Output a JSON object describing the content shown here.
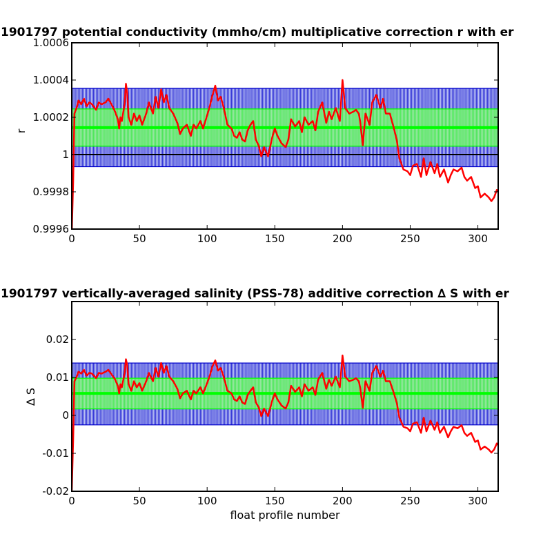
{
  "colors": {
    "background": "#ffffff",
    "axes": "#000000",
    "data_line": "#ff0000",
    "inner_band": "#00ff00",
    "inner_band_fill": "#90ee90",
    "outer_band": "#0000cc",
    "reference_line": "#000000"
  },
  "chart_data": [
    {
      "type": "line",
      "title": "1901797 potential conductivity (mmho/cm) multiplicative correction r with er",
      "xlabel": "",
      "ylabel": "r",
      "xlim": [
        0,
        315
      ],
      "ylim": [
        0.9996,
        1.0006
      ],
      "grid": false,
      "x_ticks": [
        0,
        50,
        100,
        150,
        200,
        250,
        300
      ],
      "x_tick_labels": [
        "0",
        "50",
        "100",
        "150",
        "200",
        "250",
        "300"
      ],
      "y_ticks": [
        0.9996,
        0.9998,
        1,
        1.0002,
        1.0004,
        1.0006
      ],
      "y_tick_labels": [
        "0.9996",
        "0.9998",
        "1",
        "1.0002",
        "1.0004",
        "1.0006"
      ],
      "reference_line": 1.0,
      "mean_correction": 1.000145,
      "inner_band": [
        1.000045,
        1.000245
      ],
      "outer_band": [
        0.999935,
        1.000355
      ],
      "series": [
        {
          "x": [
            0,
            1,
            2,
            4,
            5,
            7,
            9,
            11,
            13,
            15,
            18,
            20,
            22,
            25,
            27,
            30,
            32,
            34,
            35,
            36,
            37,
            39,
            40,
            41,
            42,
            44,
            46,
            48,
            50,
            52,
            55,
            57,
            60,
            62,
            64,
            66,
            68,
            70,
            72,
            75,
            78,
            80,
            82,
            85,
            88,
            90,
            92,
            95,
            97,
            100,
            102,
            104,
            106,
            108,
            110,
            112,
            115,
            118,
            120,
            122,
            124,
            126,
            128,
            130,
            132,
            134,
            136,
            138,
            140,
            142,
            145,
            148,
            150,
            152,
            155,
            158,
            160,
            162,
            165,
            168,
            170,
            172,
            175,
            178,
            180,
            182,
            185,
            188,
            190,
            192,
            195,
            198,
            200,
            202,
            205,
            208,
            210,
            212,
            213,
            215,
            217,
            220,
            222,
            225,
            228,
            230,
            232,
            235,
            238,
            240,
            242,
            245,
            248,
            250,
            252,
            255,
            258,
            260,
            262,
            265,
            268,
            270,
            272,
            275,
            278,
            280,
            282,
            285,
            288,
            290,
            292,
            295,
            298,
            300,
            302,
            305,
            308,
            310,
            312,
            314,
            315
          ],
          "values": [
            0.99958,
            0.99985,
            1.00022,
            1.00026,
            1.00029,
            1.00027,
            1.0003,
            1.00026,
            1.00028,
            1.00027,
            1.00024,
            1.00028,
            1.00027,
            1.00028,
            1.0003,
            1.00026,
            1.00023,
            1.00019,
            1.00014,
            1.0002,
            1.00018,
            1.00027,
            1.00038,
            1.00033,
            1.0002,
            1.00016,
            1.00022,
            1.00018,
            1.00021,
            1.00016,
            1.00022,
            1.00028,
            1.00022,
            1.00031,
            1.00025,
            1.00035,
            1.00028,
            1.00032,
            1.00025,
            1.00022,
            1.00017,
            1.00011,
            1.00014,
            1.00016,
            1.0001,
            1.00016,
            1.00014,
            1.00018,
            1.00014,
            1.00021,
            1.00026,
            1.00032,
            1.00037,
            1.00029,
            1.00031,
            1.00026,
            1.00016,
            1.00014,
            1.0001,
            1.00009,
            1.00012,
            1.00008,
            1.00007,
            1.00013,
            1.00016,
            1.00018,
            1.00008,
            1.00005,
            0.99999,
            1.00004,
            0.99999,
            1.00009,
            1.00014,
            1.0001,
            1.00006,
            1.00004,
            1.00008,
            1.00019,
            1.00015,
            1.00018,
            1.00012,
            1.0002,
            1.00016,
            1.00018,
            1.00013,
            1.00023,
            1.00028,
            1.00017,
            1.00023,
            1.00019,
            1.00025,
            1.00018,
            1.0004,
            1.00025,
            1.00022,
            1.00023,
            1.00024,
            1.00022,
            1.00018,
            1.00005,
            1.00022,
            1.00016,
            1.00028,
            1.00032,
            1.00025,
            1.0003,
            1.00022,
            1.00022,
            1.00014,
            1.00008,
            0.99998,
            0.99992,
            0.99991,
            0.99989,
            0.99994,
            0.99995,
            0.99988,
            0.99998,
            0.99989,
            0.99996,
            0.9999,
            0.99995,
            0.99988,
            0.99992,
            0.99985,
            0.99989,
            0.99992,
            0.99991,
            0.99993,
            0.99988,
            0.99986,
            0.99988,
            0.99982,
            0.99983,
            0.99977,
            0.99979,
            0.99977,
            0.99975,
            0.99977,
            0.99981,
            0.9998
          ]
        }
      ]
    },
    {
      "type": "line",
      "title": "1901797 vertically-averaged salinity (PSS-78) additive correction ∆ S with er",
      "xlabel": "float profile number",
      "ylabel": "∆ S",
      "xlim": [
        0,
        315
      ],
      "ylim": [
        -0.02,
        0.03
      ],
      "grid": false,
      "x_ticks": [
        0,
        50,
        100,
        150,
        200,
        250,
        300
      ],
      "x_tick_labels": [
        "0",
        "50",
        "100",
        "150",
        "200",
        "250",
        "300"
      ],
      "y_ticks": [
        -0.02,
        -0.01,
        0,
        0.01,
        0.02
      ],
      "y_tick_labels": [
        "-0.02",
        "-0.01",
        "0",
        "0.01",
        "0.02"
      ],
      "mean_correction": 0.0058,
      "inner_band": [
        0.0017,
        0.0098
      ],
      "outer_band": [
        -0.0025,
        0.0138
      ],
      "series": [
        {
          "x": [
            0,
            1,
            2,
            4,
            5,
            7,
            9,
            11,
            13,
            15,
            18,
            20,
            22,
            25,
            27,
            30,
            32,
            34,
            35,
            36,
            37,
            39,
            40,
            41,
            42,
            44,
            46,
            48,
            50,
            52,
            55,
            57,
            60,
            62,
            64,
            66,
            68,
            70,
            72,
            75,
            78,
            80,
            82,
            85,
            88,
            90,
            92,
            95,
            97,
            100,
            102,
            104,
            106,
            108,
            110,
            112,
            115,
            118,
            120,
            122,
            124,
            126,
            128,
            130,
            132,
            134,
            136,
            138,
            140,
            142,
            145,
            148,
            150,
            152,
            155,
            158,
            160,
            162,
            165,
            168,
            170,
            172,
            175,
            178,
            180,
            182,
            185,
            188,
            190,
            192,
            195,
            198,
            200,
            202,
            205,
            208,
            210,
            212,
            213,
            215,
            217,
            220,
            222,
            225,
            228,
            230,
            232,
            235,
            238,
            240,
            242,
            245,
            248,
            250,
            252,
            255,
            258,
            260,
            262,
            265,
            268,
            270,
            272,
            275,
            278,
            280,
            282,
            285,
            288,
            290,
            292,
            295,
            298,
            300,
            302,
            305,
            308,
            310,
            312,
            314,
            315
          ],
          "values": [
            -0.02,
            -0.0065,
            0.009,
            0.0105,
            0.0115,
            0.011,
            0.012,
            0.0105,
            0.0112,
            0.011,
            0.0098,
            0.0112,
            0.011,
            0.0115,
            0.012,
            0.0105,
            0.0095,
            0.0078,
            0.0058,
            0.0082,
            0.0074,
            0.011,
            0.0148,
            0.0132,
            0.0082,
            0.0065,
            0.009,
            0.0074,
            0.0085,
            0.0065,
            0.009,
            0.0112,
            0.009,
            0.0125,
            0.0102,
            0.0138,
            0.0112,
            0.013,
            0.0102,
            0.009,
            0.007,
            0.0045,
            0.0058,
            0.0065,
            0.0042,
            0.0065,
            0.0058,
            0.0074,
            0.0058,
            0.0085,
            0.0105,
            0.013,
            0.0145,
            0.0118,
            0.0125,
            0.0105,
            0.0065,
            0.0058,
            0.0042,
            0.0038,
            0.005,
            0.0034,
            0.003,
            0.0054,
            0.0065,
            0.0074,
            0.0034,
            0.0022,
            -0.0002,
            0.0018,
            -0.0002,
            0.0038,
            0.0058,
            0.0042,
            0.0026,
            0.0018,
            0.0034,
            0.0078,
            0.0062,
            0.0074,
            0.005,
            0.0082,
            0.0065,
            0.0074,
            0.0054,
            0.0094,
            0.0112,
            0.007,
            0.0094,
            0.0078,
            0.0102,
            0.0074,
            0.0158,
            0.0102,
            0.009,
            0.0094,
            0.0098,
            0.009,
            0.0074,
            0.002,
            0.009,
            0.0065,
            0.0112,
            0.013,
            0.0102,
            0.0118,
            0.009,
            0.009,
            0.0058,
            0.0034,
            -0.0006,
            -0.003,
            -0.0034,
            -0.0042,
            -0.0022,
            -0.0018,
            -0.0046,
            -0.0006,
            -0.0042,
            -0.0014,
            -0.0038,
            -0.0018,
            -0.0046,
            -0.003,
            -0.0058,
            -0.0042,
            -0.003,
            -0.0034,
            -0.0026,
            -0.0046,
            -0.0054,
            -0.0046,
            -0.007,
            -0.0066,
            -0.009,
            -0.0082,
            -0.009,
            -0.0098,
            -0.009,
            -0.0074,
            -0.0078
          ]
        }
      ]
    }
  ]
}
